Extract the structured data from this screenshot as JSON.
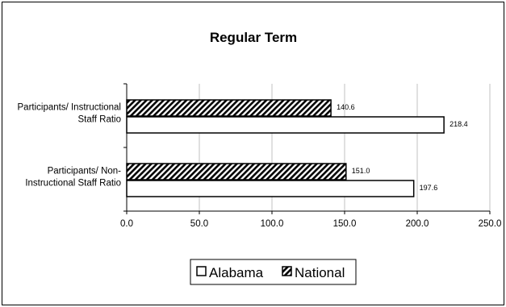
{
  "chart_data": {
    "type": "bar",
    "orientation": "horizontal",
    "title": "Regular Term",
    "categories": [
      [
        "Participants/ Instructional",
        "Staff Ratio"
      ],
      [
        "Participants/ Non-",
        "Instructional Staff Ratio"
      ]
    ],
    "series": [
      {
        "name": "Alabama",
        "values": [
          218.4,
          197.6
        ],
        "labels": [
          "218.4",
          "197.6"
        ],
        "fill": "#ffffff",
        "pattern": "none"
      },
      {
        "name": "National",
        "values": [
          140.6,
          151.0
        ],
        "labels": [
          "140.6",
          "151.0"
        ],
        "fill": "#ffffff",
        "pattern": "diagonal-hatch"
      }
    ],
    "xlim": [
      0,
      250
    ],
    "xticks": [
      "0.0",
      "50.0",
      "100.0",
      "150.0",
      "200.0",
      "250.0"
    ],
    "grid": true,
    "legend_position": "bottom",
    "colors": {
      "grid": "#c0c0c0",
      "axis": "#000000",
      "bar_stroke": "#000000",
      "hatch": "#000000"
    }
  }
}
